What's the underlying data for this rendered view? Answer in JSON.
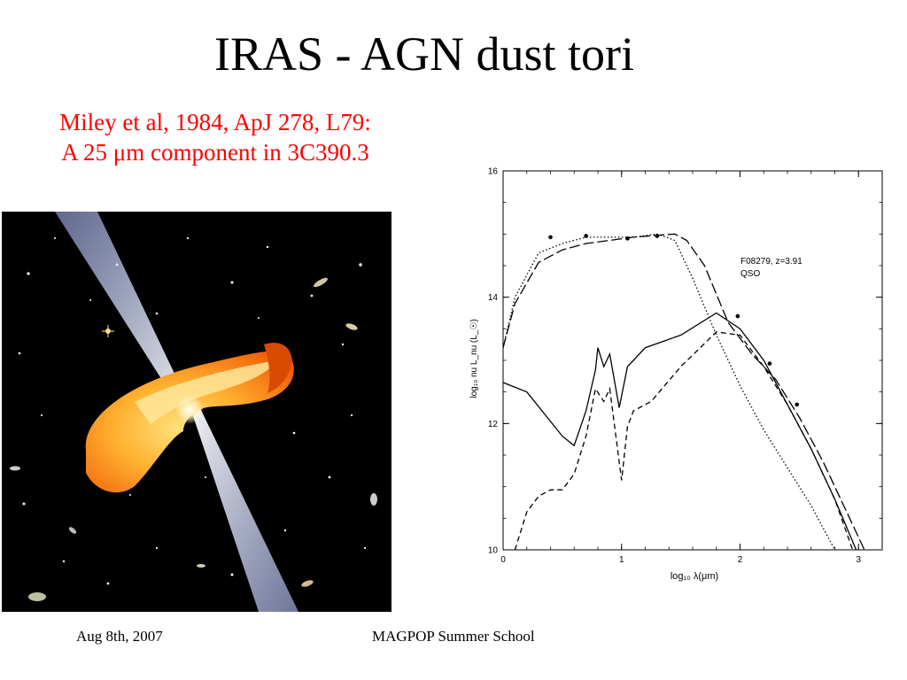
{
  "slide": {
    "title": "IRAS - AGN dust tori",
    "citation_line1": "Miley et al, 1984, ApJ 278, L79:",
    "citation_line2": "A 25 μm component in 3C390.3",
    "footer_date": "Aug 8th, 2007",
    "footer_event": "MAGPOP Summer School"
  },
  "artwork": {
    "icons": [
      "agn-torus-illustration",
      "relativistic-jet",
      "galaxy-field"
    ],
    "colors": {
      "background": "#000000",
      "torus": "#ff7a10",
      "jet": "#d8e6ff"
    }
  },
  "chart_data": {
    "type": "line",
    "xlabel": "log₁₀ λ(μm)",
    "ylabel": "log₁₀ nu L_nu (L_☉)",
    "xlim": [
      0,
      3.2
    ],
    "ylim": [
      10,
      16
    ],
    "xticks": [
      0,
      1,
      2,
      3
    ],
    "yticks": [
      10,
      12,
      14,
      16
    ],
    "annotation_line1": "F08279, z=3.91",
    "annotation_line2": "QSO",
    "series": [
      {
        "style": "dotted",
        "x": [
          0,
          0.1,
          0.3,
          0.5,
          0.7,
          0.9,
          1.1,
          1.3,
          1.45,
          1.6,
          1.8,
          2.0,
          2.2,
          2.4,
          2.6,
          2.8
        ],
        "y": [
          13.2,
          14.0,
          14.7,
          14.85,
          14.95,
          14.95,
          14.95,
          15.0,
          14.9,
          14.3,
          13.4,
          12.6,
          11.9,
          11.3,
          10.7,
          10.0
        ]
      },
      {
        "style": "long-dash",
        "x": [
          0,
          0.1,
          0.3,
          0.5,
          0.7,
          0.9,
          1.1,
          1.3,
          1.45,
          1.55,
          1.7,
          1.9,
          2.1,
          2.3,
          2.5,
          2.7,
          2.9,
          3.05
        ],
        "y": [
          13.2,
          13.9,
          14.55,
          14.75,
          14.85,
          14.9,
          14.95,
          14.98,
          15.0,
          14.9,
          14.5,
          13.6,
          13.1,
          12.7,
          12.1,
          11.4,
          10.6,
          10.0
        ]
      },
      {
        "style": "solid",
        "x": [
          0,
          0.2,
          0.5,
          0.6,
          0.7,
          0.78,
          0.8,
          0.85,
          0.9,
          0.98,
          1.05,
          1.1,
          1.2,
          1.5,
          1.8,
          2.0,
          2.2,
          2.4,
          2.6,
          2.8,
          2.98
        ],
        "y": [
          12.65,
          12.5,
          11.8,
          11.65,
          12.2,
          12.85,
          13.2,
          12.9,
          13.1,
          12.25,
          12.9,
          13.0,
          13.2,
          13.4,
          13.75,
          13.5,
          13.0,
          12.3,
          11.6,
          10.8,
          10.0
        ]
      },
      {
        "style": "short-dash",
        "x": [
          0.1,
          0.2,
          0.3,
          0.4,
          0.5,
          0.6,
          0.7,
          0.78,
          0.85,
          0.9,
          1.0,
          1.05,
          1.1,
          1.25,
          1.5,
          1.8,
          2.0,
          2.2,
          2.4,
          2.6,
          2.8,
          2.95
        ],
        "y": [
          10.0,
          10.6,
          10.85,
          10.95,
          10.95,
          11.2,
          11.8,
          12.55,
          12.35,
          12.55,
          11.1,
          11.95,
          12.2,
          12.35,
          12.9,
          13.45,
          13.4,
          12.9,
          12.3,
          11.6,
          10.8,
          10.0
        ]
      }
    ],
    "points": {
      "x": [
        0.4,
        0.7,
        1.05,
        1.3,
        1.98,
        2.25,
        2.48
      ],
      "y": [
        14.95,
        14.97,
        14.93,
        14.97,
        13.7,
        12.95,
        12.3
      ]
    }
  }
}
